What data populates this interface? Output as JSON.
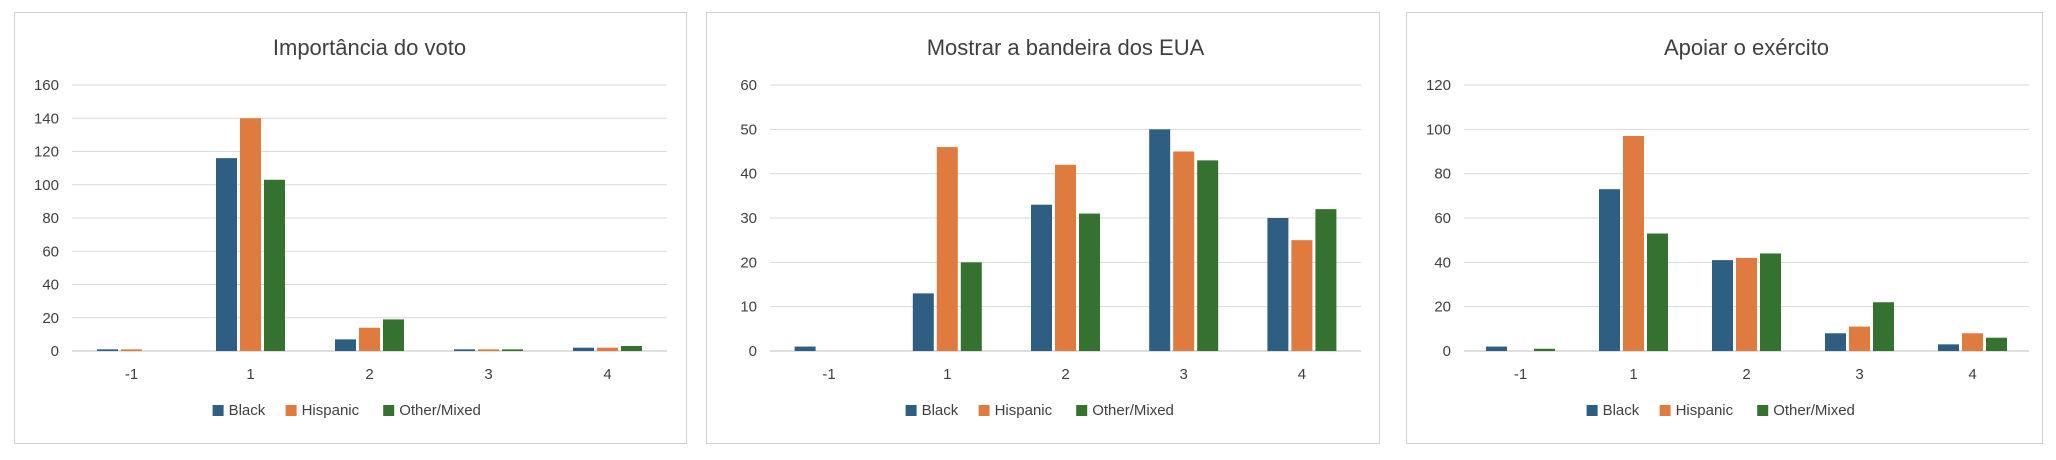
{
  "colors": {
    "Black": "#2e5f82",
    "Hispanic": "#e07b3f",
    "Other/Mixed": "#35722f",
    "grid": "#d9d9d9",
    "axis": "#bfbfbf",
    "text": "#404040"
  },
  "chart_data": [
    {
      "type": "bar",
      "title": "Importância do voto",
      "categories": [
        "-1",
        "1",
        "2",
        "3",
        "4"
      ],
      "series": [
        {
          "name": "Black",
          "values": [
            1,
            116,
            7,
            1,
            2
          ]
        },
        {
          "name": "Hispanic",
          "values": [
            1,
            140,
            14,
            1,
            2
          ]
        },
        {
          "name": "Other/Mixed",
          "values": [
            0,
            103,
            19,
            1,
            3
          ]
        }
      ],
      "ylim": [
        0,
        160
      ],
      "yticks": [
        0,
        20,
        40,
        60,
        80,
        100,
        120,
        140,
        160
      ],
      "legend": "bottom",
      "grid": true
    },
    {
      "type": "bar",
      "title": "Mostrar a bandeira dos EUA",
      "categories": [
        "-1",
        "1",
        "2",
        "3",
        "4"
      ],
      "series": [
        {
          "name": "Black",
          "values": [
            1,
            13,
            33,
            50,
            30
          ]
        },
        {
          "name": "Hispanic",
          "values": [
            0,
            46,
            42,
            45,
            25
          ]
        },
        {
          "name": "Other/Mixed",
          "values": [
            0,
            20,
            31,
            43,
            32
          ]
        }
      ],
      "ylim": [
        0,
        60
      ],
      "yticks": [
        0,
        10,
        20,
        30,
        40,
        50,
        60
      ],
      "legend": "bottom",
      "grid": true
    },
    {
      "type": "bar",
      "title": "Apoiar o exército",
      "categories": [
        "-1",
        "1",
        "2",
        "3",
        "4"
      ],
      "series": [
        {
          "name": "Black",
          "values": [
            2,
            73,
            41,
            8,
            3
          ]
        },
        {
          "name": "Hispanic",
          "values": [
            0,
            97,
            42,
            11,
            8
          ]
        },
        {
          "name": "Other/Mixed",
          "values": [
            1,
            53,
            44,
            22,
            6
          ]
        }
      ],
      "ylim": [
        0,
        120
      ],
      "yticks": [
        0,
        20,
        40,
        60,
        80,
        100,
        120
      ],
      "legend": "bottom",
      "grid": true
    }
  ]
}
